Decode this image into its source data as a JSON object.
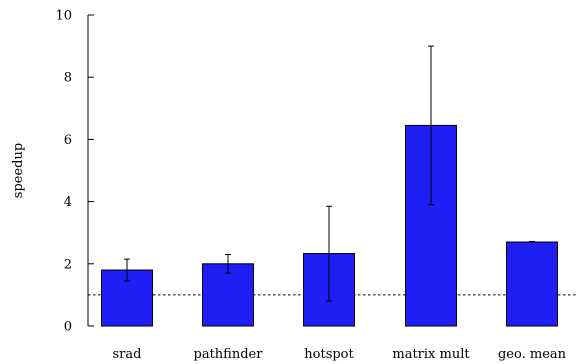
{
  "chart_data": {
    "type": "bar",
    "categories": [
      "srad",
      "pathfinder",
      "hotspot",
      "matrix mult",
      "geo. mean"
    ],
    "values": [
      1.8,
      2.0,
      2.33,
      6.45,
      2.7
    ],
    "error_low": [
      1.45,
      1.7,
      0.8,
      3.9,
      2.7
    ],
    "error_high": [
      2.15,
      2.3,
      3.85,
      9.0,
      2.72
    ],
    "reference_line": 1.0,
    "ylabel": "speedup",
    "xlabel": "",
    "ylim": [
      0,
      10
    ],
    "yticks": [
      0,
      2,
      4,
      6,
      8,
      10
    ],
    "bar_color": "#1f1ff5",
    "grid": false,
    "legend": "none"
  }
}
